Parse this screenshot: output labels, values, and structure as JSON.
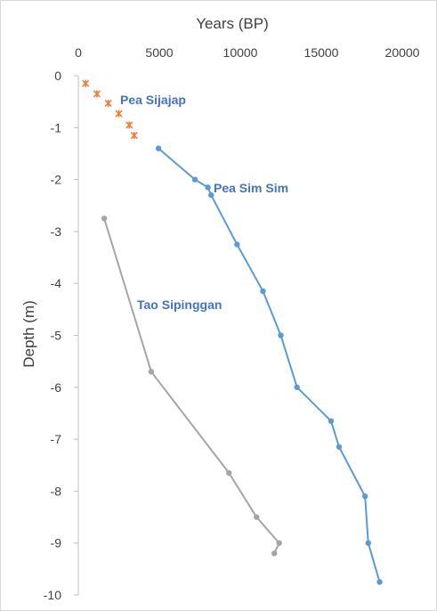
{
  "chart_data": {
    "type": "scatter",
    "xlabel": "Years (BP)",
    "ylabel": "Depth (m)",
    "xlim": [
      0,
      20000
    ],
    "ylim": [
      -10,
      0
    ],
    "xticks": [
      "0",
      "5000",
      "10000",
      "15000",
      "20000"
    ],
    "yticks": [
      "0",
      "-1",
      "-2",
      "-3",
      "-4",
      "-5",
      "-6",
      "-7",
      "-8",
      "-9",
      "-10"
    ],
    "x_axis_position": "top",
    "grid": false,
    "series": [
      {
        "name": "Pea Sijajap",
        "marker": "star",
        "line": false,
        "color": "#ed7d31",
        "points": [
          {
            "x": 450,
            "y": -0.15
          },
          {
            "x": 1150,
            "y": -0.35
          },
          {
            "x": 1850,
            "y": -0.53
          },
          {
            "x": 2500,
            "y": -0.73
          },
          {
            "x": 3150,
            "y": -0.95
          },
          {
            "x": 3450,
            "y": -1.15
          }
        ]
      },
      {
        "name": "Pea Sim Sim",
        "marker": "circle",
        "line": true,
        "color": "#5b9bd5",
        "points": [
          {
            "x": 4950,
            "y": -1.4
          },
          {
            "x": 7200,
            "y": -2.0
          },
          {
            "x": 8000,
            "y": -2.15
          },
          {
            "x": 8200,
            "y": -2.3
          },
          {
            "x": 9800,
            "y": -3.25
          },
          {
            "x": 11400,
            "y": -4.15
          },
          {
            "x": 12500,
            "y": -5.0
          },
          {
            "x": 13500,
            "y": -6.0
          },
          {
            "x": 15600,
            "y": -6.65
          },
          {
            "x": 16100,
            "y": -7.15
          },
          {
            "x": 17700,
            "y": -8.1
          },
          {
            "x": 17900,
            "y": -9.0
          },
          {
            "x": 18600,
            "y": -9.75
          }
        ]
      },
      {
        "name": "Tao Sipinggan",
        "marker": "circle",
        "line": true,
        "color": "#a5a5a5",
        "points": [
          {
            "x": 1600,
            "y": -2.75
          },
          {
            "x": 4500,
            "y": -5.7
          },
          {
            "x": 9300,
            "y": -7.65
          },
          {
            "x": 11000,
            "y": -8.5
          },
          {
            "x": 12400,
            "y": -9.0
          },
          {
            "x": 12100,
            "y": -9.2
          }
        ]
      }
    ],
    "annotations": [
      {
        "text": "Pea Sijajap",
        "series": "Pea Sijajap"
      },
      {
        "text": "Pea Sim Sim",
        "series": "Pea Sim Sim"
      },
      {
        "text": "Tao Sipinggan",
        "series": "Tao Sipinggan"
      }
    ]
  }
}
